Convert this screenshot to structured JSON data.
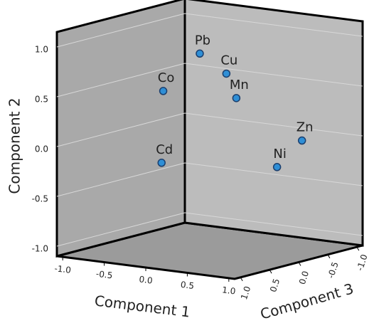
{
  "chart_data": {
    "type": "scatter3d",
    "xlabel": "Component 1",
    "ylabel": "Component 2",
    "zlabel": "Component 3",
    "labels": [
      "Pb",
      "Cu",
      "Mn",
      "Co",
      "Cd",
      "Zn",
      "Ni"
    ],
    "x": [
      -0.05,
      0.2,
      0.39,
      -0.42,
      -0.37,
      0.97,
      0.88
    ],
    "y": [
      0.89,
      0.7,
      0.49,
      0.49,
      -0.21,
      0.08,
      -0.15
    ],
    "z": [
      0.1,
      0.0,
      0.1,
      0.2,
      0.3,
      -0.2,
      0.1
    ],
    "color": "#2f8fd6",
    "xlim": [
      -1.07,
      1.07
    ],
    "ylim": [
      -1.1,
      1.15
    ],
    "zlim": [
      -1.1,
      1.1
    ],
    "xticks": [
      {
        "value": -1,
        "label": "-1.0"
      },
      {
        "value": -0.5,
        "label": "-0.5"
      },
      {
        "value": 0,
        "label": "0.0"
      },
      {
        "value": 0.5,
        "label": "0.5"
      },
      {
        "value": 1,
        "label": "1.0"
      }
    ],
    "yticks": [
      {
        "value": -1,
        "label": "-1.0"
      },
      {
        "value": -0.5,
        "label": "-0.5"
      },
      {
        "value": 0,
        "label": "0.0"
      },
      {
        "value": 0.5,
        "label": "0.5"
      },
      {
        "value": 1,
        "label": "1.0"
      }
    ],
    "zticks": [
      {
        "value": -1,
        "label": "-1.0"
      },
      {
        "value": -0.5,
        "label": "-0.5"
      },
      {
        "value": 0,
        "label": "0.0"
      },
      {
        "value": 0.5,
        "label": "0.5"
      },
      {
        "value": 1,
        "label": "1.0"
      }
    ],
    "grid": true
  }
}
